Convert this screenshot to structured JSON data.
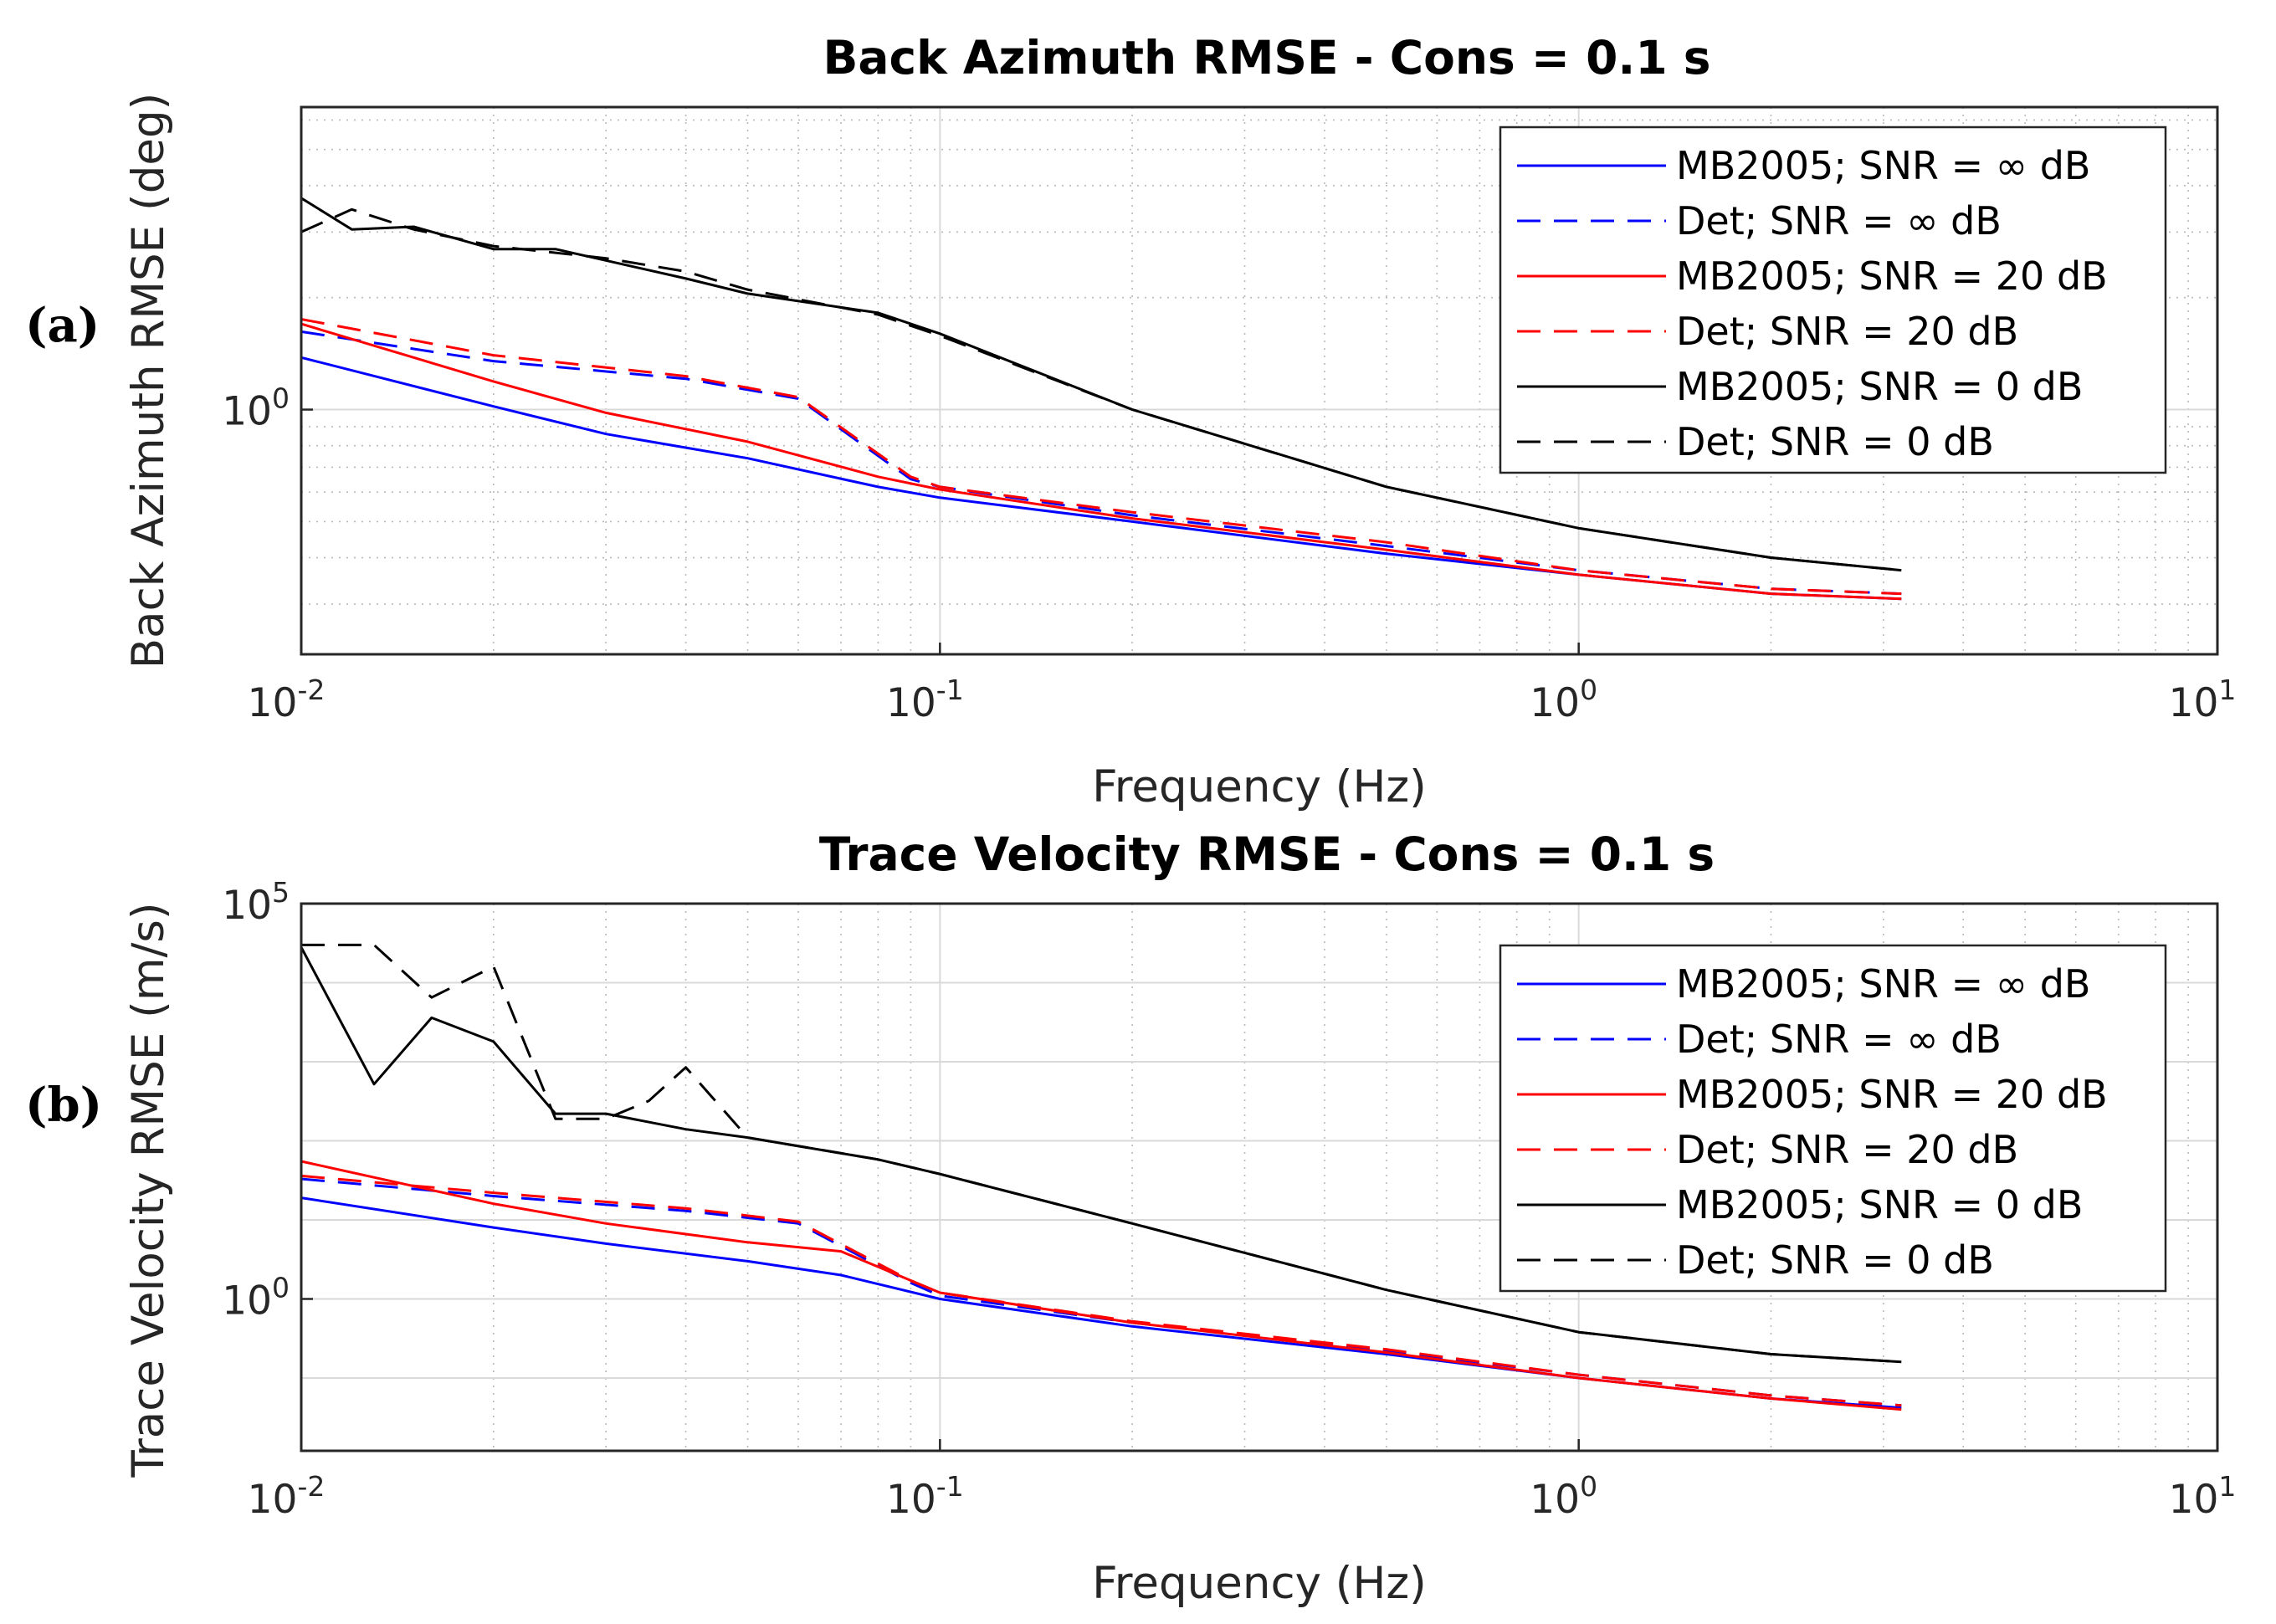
{
  "chart_data": [
    {
      "type": "line",
      "panel_label": "(a)",
      "title": "Back Azimuth RMSE - Cons = 0.1 s",
      "xlabel": "Frequency (Hz)",
      "ylabel": "Back Azimuth RMSE (deg)",
      "xscale": "log",
      "yscale": "log",
      "xlim": [
        0.01,
        10
      ],
      "ylim": [
        0.22,
        6.5
      ],
      "xticks": [
        0.01,
        0.1,
        1,
        10
      ],
      "xtick_labels": [
        {
          "base": "10",
          "exp": "-2"
        },
        {
          "base": "10",
          "exp": "-1"
        },
        {
          "base": "10",
          "exp": "0"
        },
        {
          "base": "10",
          "exp": "1"
        }
      ],
      "yticks": [
        1
      ],
      "ytick_labels": [
        {
          "base": "10",
          "exp": "0"
        }
      ],
      "grid": true,
      "legend_position": "top-right",
      "series": [
        {
          "name": "MB2005; SNR = ∞ dB",
          "color": "#0000ff",
          "dash": "solid",
          "x": [
            0.01,
            0.02,
            0.03,
            0.05,
            0.08,
            0.1,
            0.2,
            0.5,
            1,
            2,
            3.2
          ],
          "y": [
            1.38,
            1.02,
            0.86,
            0.74,
            0.62,
            0.58,
            0.5,
            0.41,
            0.36,
            0.32,
            0.31
          ]
        },
        {
          "name": "Det; SNR = ∞ dB",
          "color": "#0000ff",
          "dash": "dashed",
          "x": [
            0.01,
            0.02,
            0.04,
            0.06,
            0.09,
            0.1,
            0.2,
            0.5,
            1,
            2,
            3.2
          ],
          "y": [
            1.62,
            1.35,
            1.21,
            1.07,
            0.65,
            0.62,
            0.52,
            0.43,
            0.37,
            0.33,
            0.32
          ]
        },
        {
          "name": "MB2005; SNR = 20 dB",
          "color": "#ff0000",
          "dash": "solid",
          "x": [
            0.01,
            0.02,
            0.03,
            0.05,
            0.08,
            0.1,
            0.2,
            0.5,
            1,
            2,
            3.2
          ],
          "y": [
            1.7,
            1.19,
            0.98,
            0.82,
            0.66,
            0.61,
            0.51,
            0.42,
            0.36,
            0.32,
            0.31
          ]
        },
        {
          "name": "Det; SNR = 20 dB",
          "color": "#ff0000",
          "dash": "dashed",
          "x": [
            0.01,
            0.02,
            0.04,
            0.06,
            0.09,
            0.1,
            0.2,
            0.5,
            1,
            2,
            3.2
          ],
          "y": [
            1.75,
            1.4,
            1.23,
            1.08,
            0.66,
            0.62,
            0.53,
            0.44,
            0.37,
            0.33,
            0.32
          ]
        },
        {
          "name": "MB2005; SNR = 0 dB",
          "color": "#000000",
          "dash": "solid",
          "x": [
            0.01,
            0.012,
            0.015,
            0.02,
            0.025,
            0.04,
            0.05,
            0.08,
            0.1,
            0.2,
            0.5,
            1,
            2,
            3.2
          ],
          "y": [
            3.7,
            3.05,
            3.1,
            2.7,
            2.7,
            2.25,
            2.05,
            1.82,
            1.6,
            1.0,
            0.62,
            0.48,
            0.4,
            0.37
          ]
        },
        {
          "name": "Det; SNR = 0 dB",
          "color": "#000000",
          "dash": "dashed",
          "x": [
            0.01,
            0.012,
            0.015,
            0.02,
            0.03,
            0.04,
            0.05,
            0.08,
            0.1,
            0.2,
            0.5,
            1,
            2,
            3.2
          ],
          "y": [
            3.0,
            3.45,
            3.05,
            2.75,
            2.55,
            2.35,
            2.1,
            1.8,
            1.58,
            1.0,
            0.62,
            0.48,
            0.4,
            0.37
          ]
        }
      ]
    },
    {
      "type": "line",
      "panel_label": "(b)",
      "title": "Trace Velocity RMSE - Cons = 0.1 s",
      "xlabel": "Frequency (Hz)",
      "ylabel": "Trace Velocity RMSE (m/s)",
      "xscale": "log",
      "yscale": "log",
      "xlim": [
        0.01,
        10
      ],
      "ylim": [
        0.012,
        100000
      ],
      "xticks": [
        0.01,
        0.1,
        1,
        10
      ],
      "xtick_labels": [
        {
          "base": "10",
          "exp": "-2"
        },
        {
          "base": "10",
          "exp": "-1"
        },
        {
          "base": "10",
          "exp": "0"
        },
        {
          "base": "10",
          "exp": "1"
        }
      ],
      "yticks": [
        1,
        100000
      ],
      "ytick_labels": [
        {
          "base": "10",
          "exp": "0"
        },
        {
          "base": "10",
          "exp": "5"
        }
      ],
      "grid": true,
      "legend_position": "top-right",
      "series": [
        {
          "name": "MB2005; SNR = ∞ dB",
          "color": "#0000ff",
          "dash": "solid",
          "x": [
            0.01,
            0.02,
            0.03,
            0.05,
            0.07,
            0.1,
            0.2,
            0.5,
            1,
            2,
            3.2
          ],
          "y": [
            19,
            8,
            5,
            3,
            2,
            1.0,
            0.45,
            0.2,
            0.1,
            0.055,
            0.042
          ]
        },
        {
          "name": "Det; SNR = ∞ dB",
          "color": "#0000ff",
          "dash": "dashed",
          "x": [
            0.01,
            0.02,
            0.04,
            0.06,
            0.09,
            0.1,
            0.2,
            0.5,
            1,
            2,
            3.2
          ],
          "y": [
            33,
            20,
            13,
            9,
            1.6,
            1.1,
            0.5,
            0.22,
            0.11,
            0.06,
            0.045
          ]
        },
        {
          "name": "MB2005; SNR = 20 dB",
          "color": "#ff0000",
          "dash": "solid",
          "x": [
            0.01,
            0.02,
            0.03,
            0.05,
            0.07,
            0.1,
            0.2,
            0.5,
            1,
            2,
            3.2
          ],
          "y": [
            55,
            16,
            9,
            5.2,
            4,
            1.2,
            0.5,
            0.21,
            0.1,
            0.055,
            0.04
          ]
        },
        {
          "name": "Det; SNR = 20 dB",
          "color": "#ff0000",
          "dash": "dashed",
          "x": [
            0.01,
            0.02,
            0.04,
            0.06,
            0.09,
            0.1,
            0.2,
            0.5,
            1,
            2,
            3.2
          ],
          "y": [
            36,
            22,
            14,
            9.5,
            1.7,
            1.2,
            0.52,
            0.23,
            0.11,
            0.06,
            0.045
          ]
        },
        {
          "name": "MB2005; SNR = 0 dB",
          "color": "#000000",
          "dash": "solid",
          "x": [
            0.01,
            0.013,
            0.016,
            0.02,
            0.025,
            0.03,
            0.04,
            0.05,
            0.08,
            0.1,
            0.2,
            0.5,
            1,
            2,
            3.2
          ],
          "y": [
            28000,
            520,
            3600,
            1800,
            220,
            220,
            140,
            110,
            58,
            38,
            9,
            1.3,
            0.38,
            0.2,
            0.16
          ]
        },
        {
          "name": "Det; SNR = 0 dB",
          "color": "#000000",
          "dash": "dashed",
          "x": [
            0.01,
            0.013,
            0.016,
            0.02,
            0.025,
            0.03,
            0.035,
            0.04,
            0.05,
            0.08,
            0.1,
            0.2,
            0.5,
            1,
            2,
            3.2
          ],
          "y": [
            30000,
            30000,
            6500,
            16000,
            190,
            190,
            320,
            850,
            110,
            58,
            38,
            9,
            1.3,
            0.38,
            0.2,
            0.16
          ]
        }
      ]
    }
  ]
}
